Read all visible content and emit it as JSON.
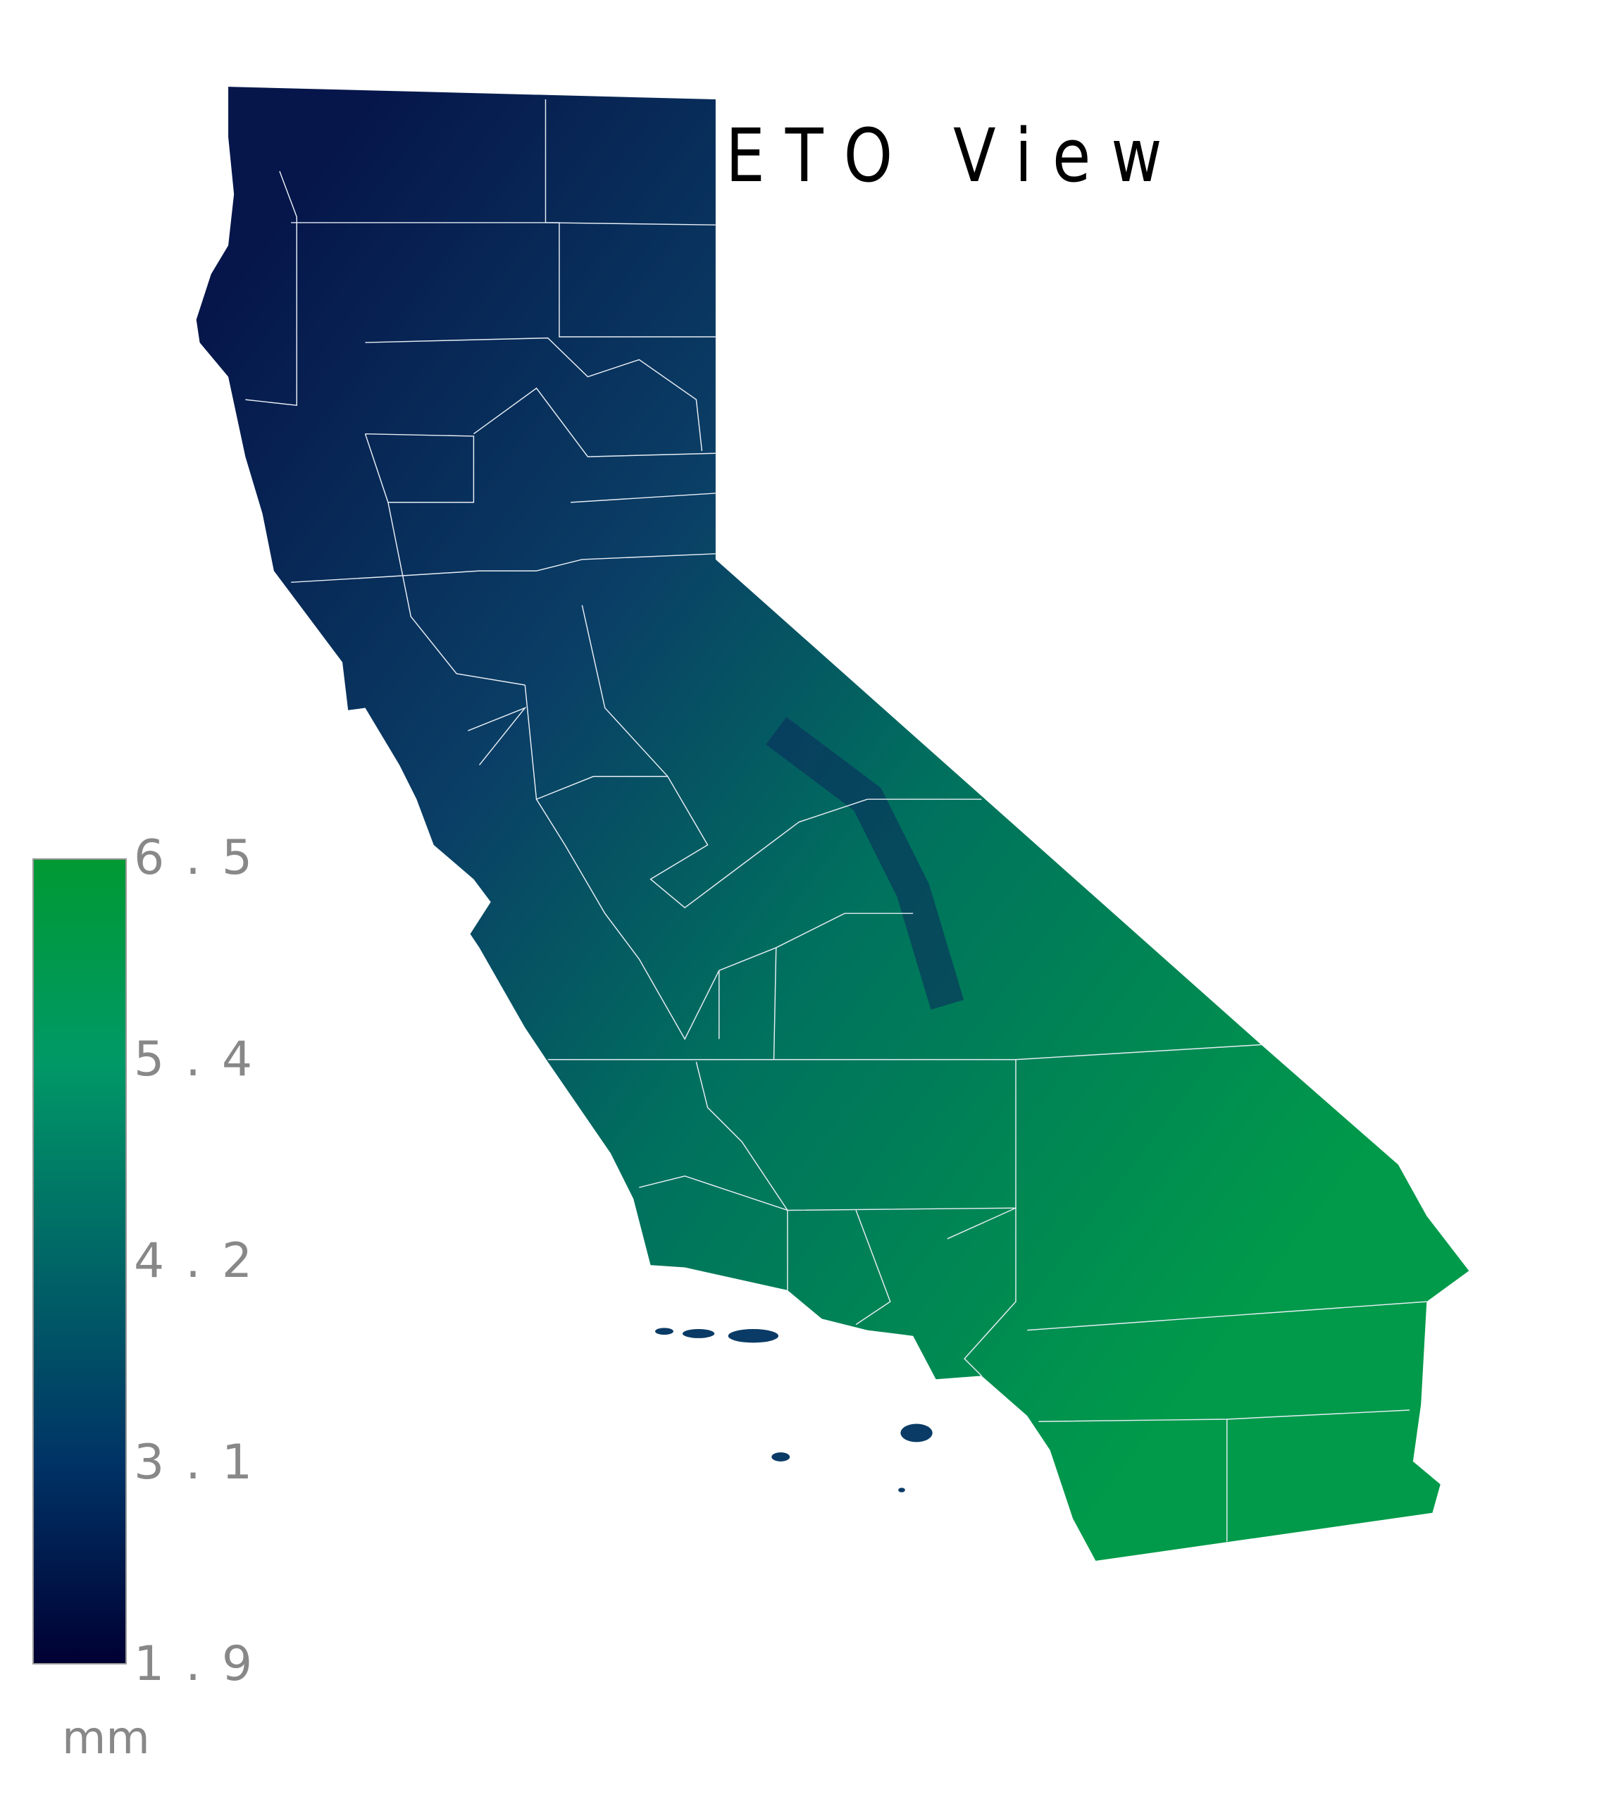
{
  "title": "ETO View",
  "legend": {
    "unit": "mm",
    "ticks": [
      "6.5",
      "5.4",
      "4.2",
      "3.1",
      "1.9"
    ],
    "range": [
      1.9,
      6.5
    ],
    "colors": {
      "high": "#009933",
      "upper": "#009966",
      "mid": "#006666",
      "lower": "#003366",
      "low": "#000033"
    }
  },
  "map": {
    "region": "California",
    "boundary_color": "#ffffff",
    "gradient": [
      "#061a4c",
      "#0a3b66",
      "#00705e",
      "#009a4a"
    ]
  }
}
